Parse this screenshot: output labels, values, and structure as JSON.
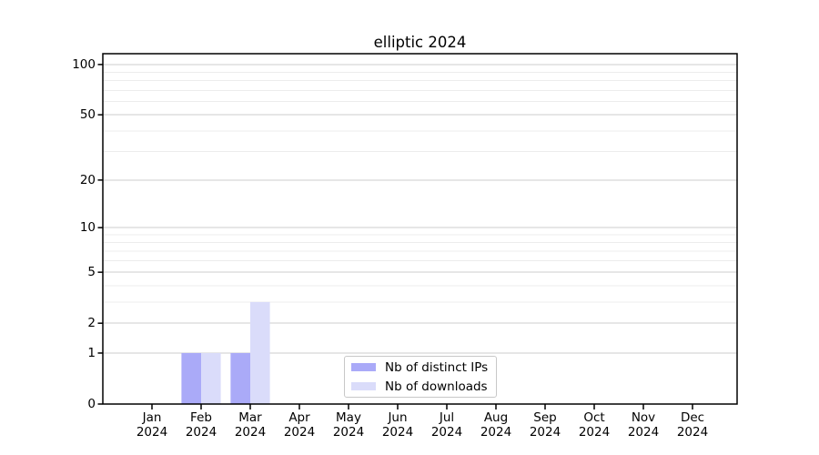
{
  "title": "elliptic 2024",
  "chart_data": {
    "type": "bar",
    "title": "elliptic 2024",
    "categories": [
      "Jan 2024",
      "Feb 2024",
      "Mar 2024",
      "Apr 2024",
      "May 2024",
      "Jun 2024",
      "Jul 2024",
      "Aug 2024",
      "Sep 2024",
      "Oct 2024",
      "Nov 2024",
      "Dec 2024"
    ],
    "x_tick_months": [
      "Jan",
      "Feb",
      "Mar",
      "Apr",
      "May",
      "Jun",
      "Jul",
      "Aug",
      "Sep",
      "Oct",
      "Nov",
      "Dec"
    ],
    "x_tick_year": "2024",
    "series": [
      {
        "name": "Nb of distinct IPs",
        "color": "#aaaaf8",
        "values": [
          0,
          1,
          1,
          0,
          0,
          0,
          0,
          0,
          0,
          0,
          0,
          0
        ]
      },
      {
        "name": "Nb of downloads",
        "color": "#dadcfa",
        "values": [
          0,
          1,
          3,
          0,
          0,
          0,
          0,
          0,
          0,
          0,
          0,
          0
        ]
      }
    ],
    "xlabel": "",
    "ylabel": "",
    "yscale": "log1p",
    "ylim": [
      0,
      116
    ],
    "yticks": [
      0,
      1,
      2,
      5,
      10,
      20,
      50,
      100
    ],
    "yticks_minor": [
      3,
      4,
      6,
      7,
      8,
      9,
      30,
      40,
      60,
      70,
      80,
      90
    ],
    "grid": "horizontal",
    "legend": {
      "position": "lower-center",
      "items": [
        {
          "label": "Nb of distinct IPs",
          "color": "#aaaaf8"
        },
        {
          "label": "Nb of downloads",
          "color": "#dadcfa"
        }
      ]
    }
  },
  "colors": {
    "background": "#ffffff",
    "axis": "#000000",
    "grid_major": "#cdcdcd",
    "grid_minor": "#ececec",
    "text": "#000000"
  }
}
